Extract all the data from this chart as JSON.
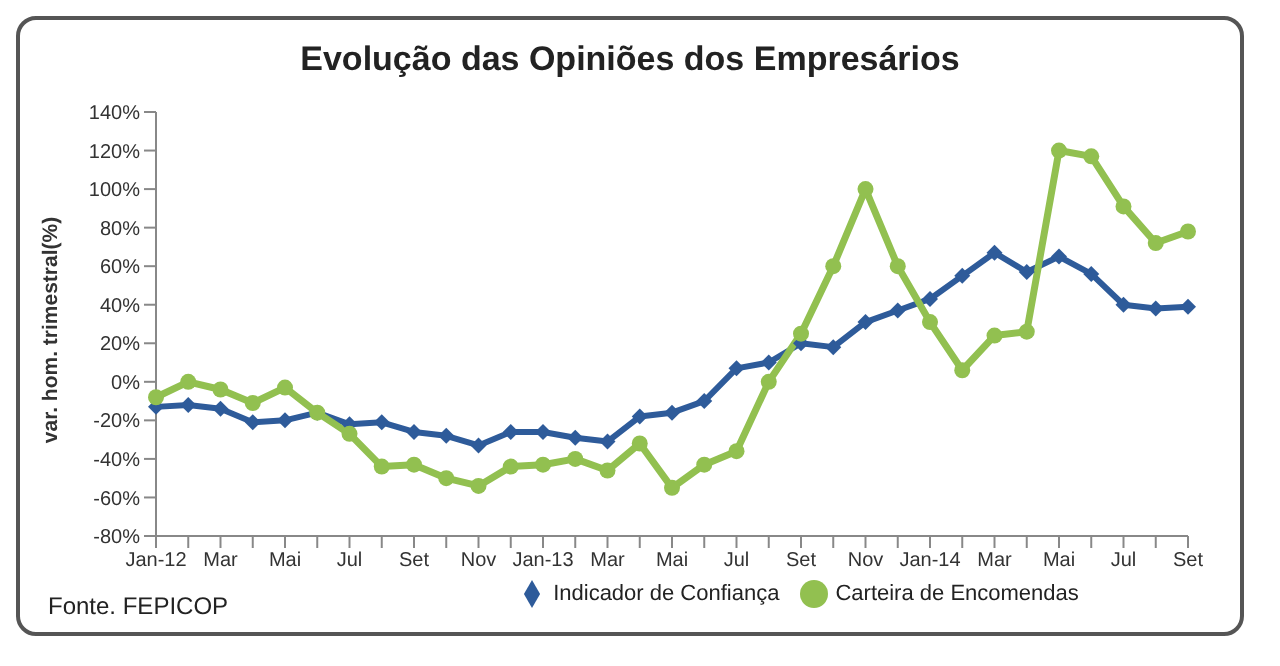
{
  "chart_data": {
    "type": "line",
    "title": "Evolução das Opiniões dos Empresários",
    "ylabel": "var. hom. trimestral(%)",
    "categories": [
      "Jan-12",
      null,
      "Mar",
      null,
      "Mai",
      null,
      "Jul",
      null,
      "Set",
      null,
      "Nov",
      null,
      "Jan-13",
      null,
      "Mar",
      null,
      "Mai",
      null,
      "Jul",
      null,
      "Set",
      null,
      "Nov",
      null,
      "Jan-14",
      null,
      "Mar",
      null,
      "Mai",
      null,
      "Jul",
      null,
      "Set"
    ],
    "series": [
      {
        "name": "Indicador de Confiança",
        "color": "#2e5b9a",
        "marker": "diamond",
        "values": [
          -13,
          -12,
          -14,
          -21,
          -20,
          -16,
          -22,
          -21,
          -26,
          -28,
          -33,
          -26,
          -26,
          -29,
          -31,
          -18,
          -16,
          -10,
          7,
          10,
          20,
          18,
          31,
          37,
          43,
          55,
          67,
          57,
          65,
          56,
          40,
          38,
          39
        ]
      },
      {
        "name": "Carteira de Encomendas",
        "color": "#92c050",
        "marker": "circle",
        "values": [
          -8,
          0,
          -4,
          -11,
          -3,
          -16,
          -27,
          -44,
          -43,
          -50,
          -54,
          -44,
          -43,
          -40,
          -46,
          -32,
          -55,
          -43,
          -36,
          0,
          25,
          60,
          100,
          60,
          31,
          6,
          24,
          26,
          120,
          117,
          91,
          72,
          78
        ]
      }
    ],
    "ylim": [
      -80,
      140
    ],
    "yticks": [
      {
        "value": -80,
        "label": "-80%"
      },
      {
        "value": -60,
        "label": "-60%"
      },
      {
        "value": -40,
        "label": "-40%"
      },
      {
        "value": -20,
        "label": "-20%"
      },
      {
        "value": 0,
        "label": "0%"
      },
      {
        "value": 20,
        "label": "20%"
      },
      {
        "value": 40,
        "label": "40%"
      },
      {
        "value": 60,
        "label": "60%"
      },
      {
        "value": 80,
        "label": "80%"
      },
      {
        "value": 100,
        "label": "100%"
      },
      {
        "value": 120,
        "label": "120%"
      },
      {
        "value": 140,
        "label": "140%"
      }
    ],
    "grid": false,
    "legend": "bottom",
    "line_style": "solid",
    "annotations": [
      "Fonte. FEPICOP"
    ]
  }
}
